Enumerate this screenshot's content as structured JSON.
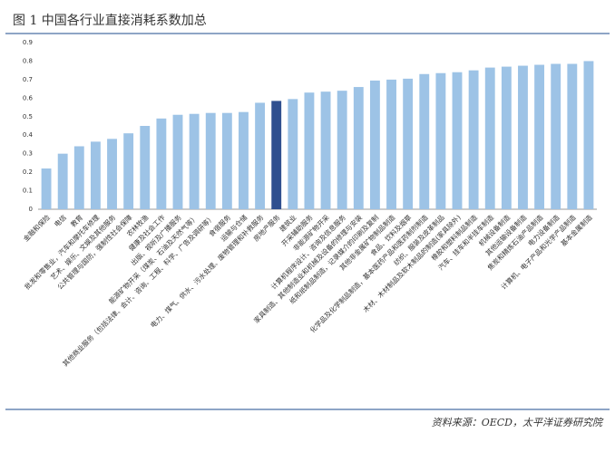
{
  "chart_data": {
    "type": "bar",
    "title": "图 1   中国各行业直接消耗系数加总",
    "source": "资料来源：OECD，太平洋证券研究院",
    "categories": [
      "金融和保险",
      "电信",
      "教育",
      "批发和零售业，汽车和摩托车修理",
      "艺术、娱乐、文娱及其他服务",
      "公共管理与国防，强制性社会保障",
      "农林牧渔",
      "健康及社会工作",
      "出版、视听及广播服务",
      "能源矿物开采（煤炭、石油及天然气等）",
      "其他商业服务（包括法律、会计、咨询、工程、科学、广告及调研等）",
      "食宿服务",
      "运输与仓储",
      "电力、煤气、供水、污水处理、废物管理和补救服务",
      "房地产服务",
      "建筑业",
      "开采辅助服务",
      "非能源矿物开采",
      "计算机程序设计、咨询及信息服务",
      "家具制造、其他制造业和机械及设备的修理与安装",
      "纸和纸制品制造，记录媒介的印刷及复制",
      "其他非金属矿物制品制造",
      "食品、饮料及烟草",
      "化学品及化学制品制造，基本医药产品和医药制剂制造",
      "纺织、服装及皮革制品",
      "木材、木材制品及软木制品的制造(家具除外)",
      "橡胶和塑料制品制造",
      "汽车、挂车和半挂车制造",
      "机械设备制造",
      "其他运输设备制造",
      "焦炭和精炼石油产品制造",
      "电力设备制造",
      "计算机、电子产品和光学产品制造",
      "基本金属制造"
    ],
    "values": [
      0.22,
      0.3,
      0.34,
      0.365,
      0.38,
      0.41,
      0.45,
      0.49,
      0.51,
      0.515,
      0.52,
      0.52,
      0.525,
      0.575,
      0.585,
      0.595,
      0.63,
      0.635,
      0.64,
      0.66,
      0.695,
      0.7,
      0.705,
      0.73,
      0.735,
      0.74,
      0.75,
      0.765,
      0.77,
      0.775,
      0.78,
      0.785,
      0.785,
      0.8
    ],
    "colors": [
      "#9dc3e6",
      "#9dc3e6",
      "#9dc3e6",
      "#9dc3e6",
      "#9dc3e6",
      "#9dc3e6",
      "#9dc3e6",
      "#9dc3e6",
      "#9dc3e6",
      "#9dc3e6",
      "#9dc3e6",
      "#9dc3e6",
      "#9dc3e6",
      "#9dc3e6",
      "#2f4f8f",
      "#9dc3e6",
      "#9dc3e6",
      "#9dc3e6",
      "#9dc3e6",
      "#9dc3e6",
      "#9dc3e6",
      "#9dc3e6",
      "#9dc3e6",
      "#9dc3e6",
      "#9dc3e6",
      "#9dc3e6",
      "#9dc3e6",
      "#9dc3e6",
      "#9dc3e6",
      "#9dc3e6",
      "#9dc3e6",
      "#9dc3e6",
      "#9dc3e6",
      "#9dc3e6"
    ],
    "ylim": [
      0,
      0.9
    ],
    "yticks": [
      0,
      0.1,
      0.2,
      0.3,
      0.4,
      0.5,
      0.6,
      0.7,
      0.8,
      0.9
    ],
    "grid": false
  }
}
